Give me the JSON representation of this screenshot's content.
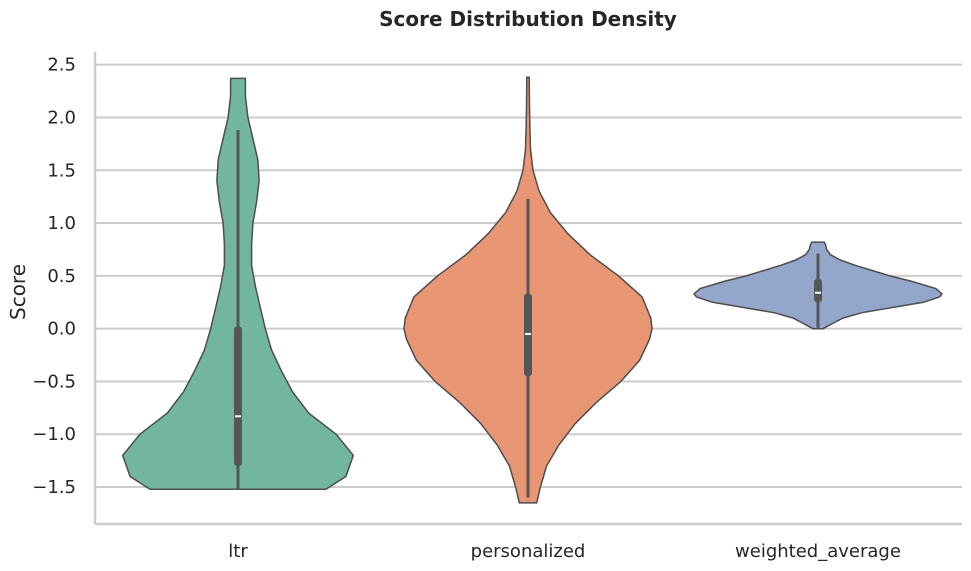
{
  "chart_data": {
    "type": "violin",
    "title": "Score Distribution Density",
    "xlabel": "",
    "ylabel": "Score",
    "ylim": [
      -1.85,
      2.62
    ],
    "yticks": [
      -1.5,
      -1.0,
      -0.5,
      0.0,
      0.5,
      1.0,
      1.5,
      2.0,
      2.5
    ],
    "ytick_labels": [
      "−1.5",
      "−1.0",
      "−0.5",
      "0.0",
      "0.5",
      "1.0",
      "1.5",
      "2.0",
      "2.5"
    ],
    "grid": true,
    "categories": [
      "ltr",
      "personalized",
      "weighted_average"
    ],
    "series": [
      {
        "category": "ltr",
        "color": "#72b6a1",
        "range": [
          -1.52,
          2.37
        ],
        "whisker": [
          -1.52,
          1.88
        ],
        "quartiles": [
          -1.3,
          0.02
        ],
        "median": -0.83,
        "density_profile": [
          [
            -1.52,
            0.71
          ],
          [
            -1.4,
            0.87
          ],
          [
            -1.2,
            0.93
          ],
          [
            -1.0,
            0.79
          ],
          [
            -0.8,
            0.57
          ],
          [
            -0.6,
            0.44
          ],
          [
            -0.4,
            0.35
          ],
          [
            -0.2,
            0.27
          ],
          [
            0.0,
            0.22
          ],
          [
            0.2,
            0.18
          ],
          [
            0.4,
            0.14
          ],
          [
            0.6,
            0.11
          ],
          [
            0.8,
            0.11
          ],
          [
            1.0,
            0.12
          ],
          [
            1.2,
            0.15
          ],
          [
            1.4,
            0.17
          ],
          [
            1.6,
            0.16
          ],
          [
            1.8,
            0.12
          ],
          [
            2.0,
            0.08
          ],
          [
            2.2,
            0.06
          ],
          [
            2.37,
            0.06
          ]
        ]
      },
      {
        "category": "personalized",
        "color": "#e99675",
        "range": [
          -1.65,
          2.38
        ],
        "whisker": [
          -1.6,
          1.23
        ],
        "quartiles": [
          -0.45,
          0.33
        ],
        "median": -0.05,
        "density_profile": [
          [
            -1.65,
            0.07
          ],
          [
            -1.5,
            0.1
          ],
          [
            -1.3,
            0.15
          ],
          [
            -1.1,
            0.25
          ],
          [
            -0.9,
            0.38
          ],
          [
            -0.7,
            0.55
          ],
          [
            -0.5,
            0.75
          ],
          [
            -0.3,
            0.9
          ],
          [
            -0.1,
            0.98
          ],
          [
            0.0,
            1.0
          ],
          [
            0.1,
            0.99
          ],
          [
            0.3,
            0.92
          ],
          [
            0.5,
            0.73
          ],
          [
            0.7,
            0.5
          ],
          [
            0.9,
            0.32
          ],
          [
            1.1,
            0.18
          ],
          [
            1.3,
            0.09
          ],
          [
            1.5,
            0.04
          ],
          [
            1.7,
            0.02
          ],
          [
            1.9,
            0.015
          ],
          [
            2.1,
            0.012
          ],
          [
            2.38,
            0.01
          ]
        ]
      },
      {
        "category": "weighted_average",
        "color": "#94a6c9",
        "range": [
          0.0,
          0.82
        ],
        "whisker": [
          0.0,
          0.71
        ],
        "quartiles": [
          0.25,
          0.47
        ],
        "median": 0.34,
        "density_profile": [
          [
            0.0,
            0.04
          ],
          [
            0.05,
            0.12
          ],
          [
            0.1,
            0.2
          ],
          [
            0.15,
            0.35
          ],
          [
            0.2,
            0.6
          ],
          [
            0.25,
            0.85
          ],
          [
            0.3,
            0.98
          ],
          [
            0.33,
            1.0
          ],
          [
            0.38,
            0.95
          ],
          [
            0.45,
            0.75
          ],
          [
            0.5,
            0.58
          ],
          [
            0.55,
            0.44
          ],
          [
            0.6,
            0.3
          ],
          [
            0.65,
            0.18
          ],
          [
            0.7,
            0.1
          ],
          [
            0.75,
            0.07
          ],
          [
            0.8,
            0.06
          ],
          [
            0.82,
            0.05
          ]
        ]
      }
    ]
  }
}
